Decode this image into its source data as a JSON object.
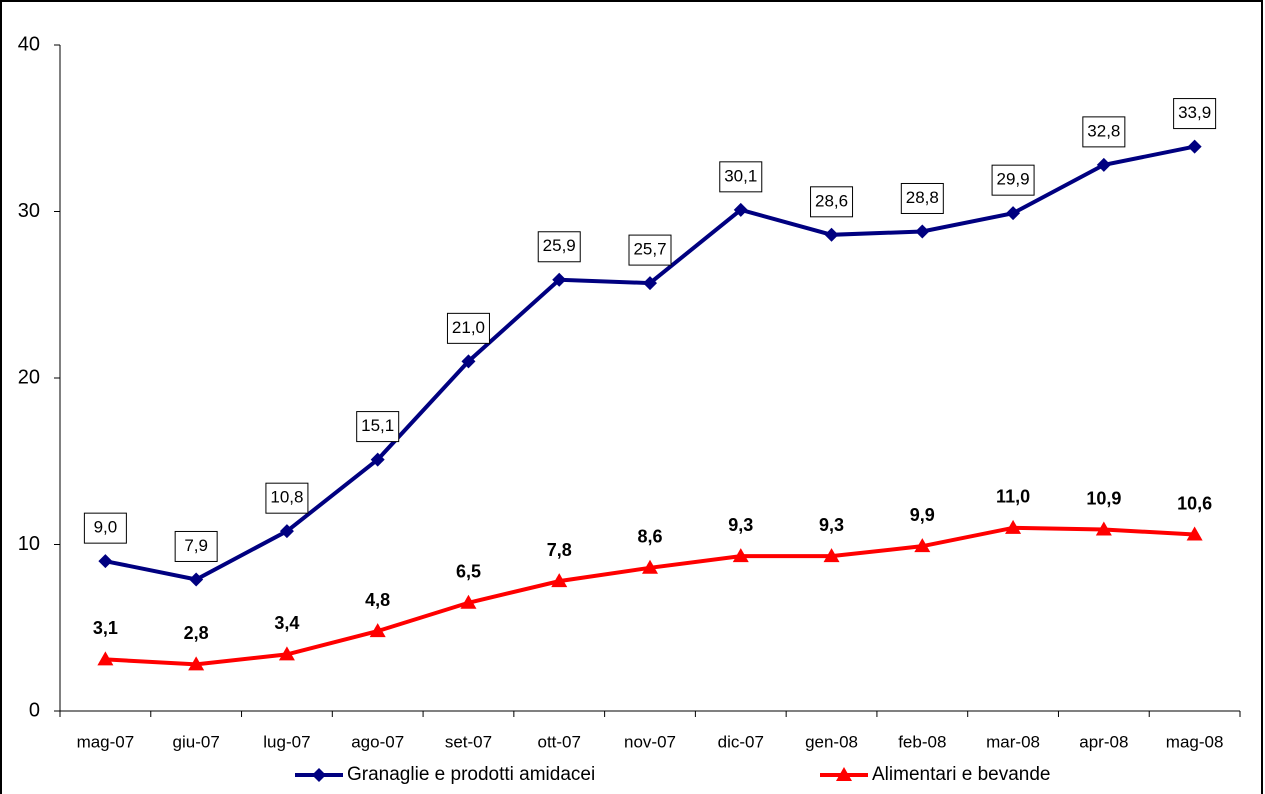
{
  "chart_data": {
    "type": "line",
    "categories": [
      "mag-07",
      "giu-07",
      "lug-07",
      "ago-07",
      "set-07",
      "ott-07",
      "nov-07",
      "dic-07",
      "gen-08",
      "feb-08",
      "mar-08",
      "apr-08",
      "mag-08"
    ],
    "series": [
      {
        "name": "Granaglie e prodotti amidacei",
        "color": "#000080",
        "marker": "diamond",
        "values": [
          9.0,
          7.9,
          10.8,
          15.1,
          21.0,
          25.9,
          25.7,
          30.1,
          28.6,
          28.8,
          29.9,
          32.8,
          33.9
        ],
        "value_labels": [
          "9,0",
          "7,9",
          "10,8",
          "15,1",
          "21,0",
          "25,9",
          "25,7",
          "30,1",
          "28,6",
          "28,8",
          "29,9",
          "32,8",
          "33,9"
        ]
      },
      {
        "name": "Alimentari e bevande",
        "color": "#ff0000",
        "marker": "triangle",
        "values": [
          3.1,
          2.8,
          3.4,
          4.8,
          6.5,
          7.8,
          8.6,
          9.3,
          9.3,
          9.9,
          11.0,
          10.9,
          10.6
        ],
        "value_labels": [
          "3,1",
          "2,8",
          "3,4",
          "4,8",
          "6,5",
          "7,8",
          "8,6",
          "9,3",
          "9,3",
          "9,9",
          "11,0",
          "10,9",
          "10,6"
        ]
      }
    ],
    "ylim": [
      0,
      40
    ],
    "yticks": [
      0,
      10,
      20,
      30,
      40
    ],
    "grid": false,
    "legend": "bottom"
  }
}
